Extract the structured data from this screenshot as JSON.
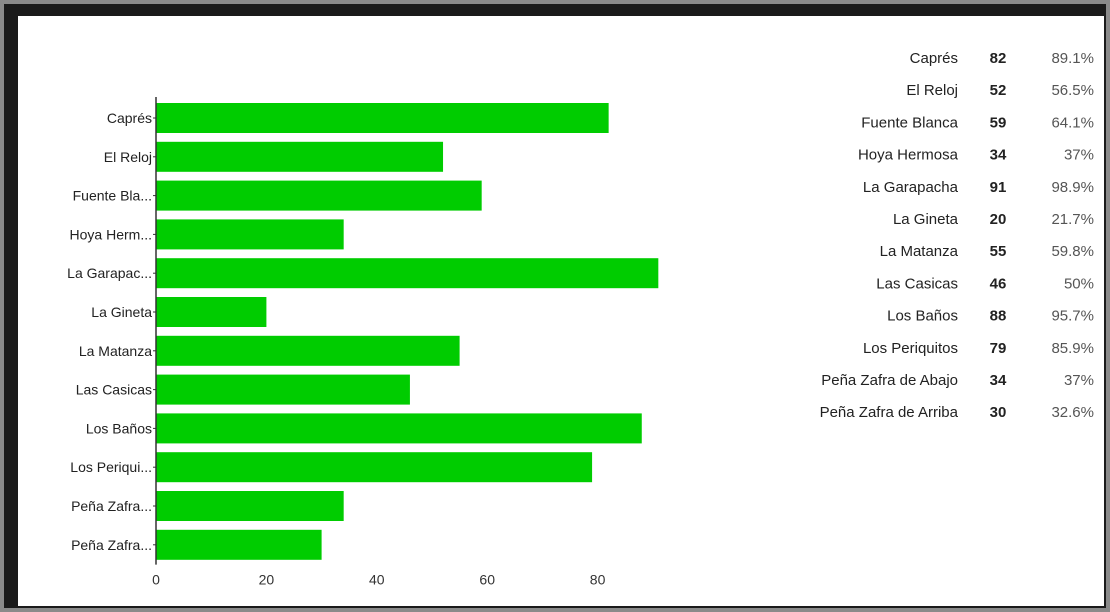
{
  "colors": {
    "bar": "#00cc00",
    "axis": "#333333"
  },
  "chart_data": {
    "type": "bar",
    "orientation": "horizontal",
    "categories": [
      "Caprés",
      "El Reloj",
      "Fuente Blanca",
      "Hoya Hermosa",
      "La Garapacha",
      "La Gineta",
      "La Matanza",
      "Las Casicas",
      "Los Baños",
      "Los Periquitos",
      "Peña Zafra de Abajo",
      "Peña Zafra de Arriba"
    ],
    "category_tick_labels": [
      "Caprés",
      "El Reloj",
      "Fuente Bla...",
      "Hoya Herm...",
      "La Garapac...",
      "La Gineta",
      "La Matanza",
      "Las Casicas",
      "Los Baños",
      "Los Periqui...",
      "Peña Zafra...",
      "Peña Zafra..."
    ],
    "values": [
      82,
      52,
      59,
      34,
      91,
      20,
      55,
      46,
      88,
      79,
      34,
      30
    ],
    "percentages": [
      "89.1%",
      "56.5%",
      "64.1%",
      "37%",
      "98.9%",
      "21.7%",
      "59.8%",
      "50%",
      "95.7%",
      "85.9%",
      "37%",
      "32.6%"
    ],
    "xlim": [
      0,
      91
    ],
    "x_ticks": [
      0,
      20,
      40,
      60,
      80
    ],
    "title": "",
    "xlabel": "",
    "ylabel": "",
    "grid": false,
    "legend": "none"
  }
}
